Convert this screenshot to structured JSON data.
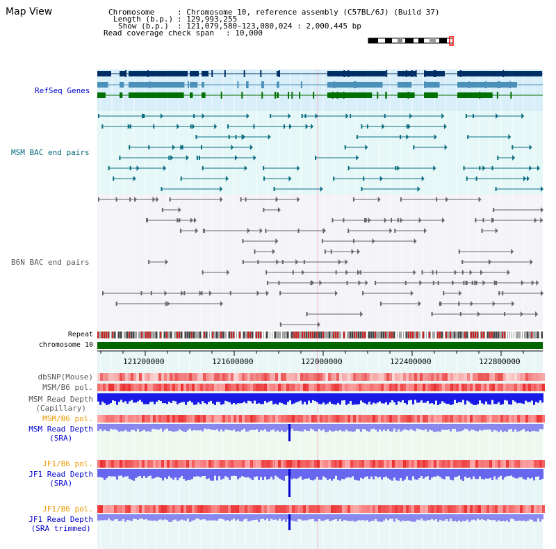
{
  "title": "Map View",
  "info": {
    "chromosome_label": "Chromosome",
    "chromosome_value": ": Chromosome 10, reference assembly (C57BL/6J) (Build 37)",
    "length_label": "Length (b.p.)",
    "length_value": ": 129,993,255",
    "show_label": "Show (b.p.)",
    "show_value": ": 121,079,580-123,080,024 : 2,000,445 bp",
    "coverage_label": "Read coverage check span",
    "coverage_value": ": 10,000"
  },
  "tracks": {
    "refseq": "RefSeq Genes",
    "msm_bac": "MSM BAC end pairs",
    "b6n_bac": "B6N BAC end pairs",
    "repeat": "Repeat",
    "chromosome": "chromosome 10",
    "dbsnp": "dbSNP(Mouse)",
    "msm_b6_pol": "MSM/B6 pol.",
    "msm_depth_cap_1": "MSM Read Depth",
    "msm_depth_cap_2": "(Capillary)",
    "msm_b6_pol_2": "MSM/B6 pol.",
    "msm_depth_sra_1": "MSM Read Depth",
    "msm_depth_sra_2": "(SRA)",
    "jf1_b6_pol": "JF1/B6 pol.",
    "jf1_depth_sra_1": "JF1 Read Depth",
    "jf1_depth_sra_2": "(SRA)",
    "jf1_b6_pol_2": "JF1/B6 pol.",
    "jf1_depth_trim_1": "JF1 Read Depth",
    "jf1_depth_trim_2": "(SRA trimmed)"
  },
  "ruler": {
    "ticks": [
      "121200000",
      "121600000",
      "122000000",
      "122400000",
      "122800000"
    ]
  },
  "colors": {
    "label_blue": "#0000cc",
    "label_teal": "#006677",
    "label_gray": "#555555",
    "label_orange": "#ee9900",
    "refseq_bg": "#d8eef9",
    "msm_bg": "#e6f7f7",
    "b6n_bg": "#f3f3f8",
    "lower_bg": "#eaf6f6"
  }
}
